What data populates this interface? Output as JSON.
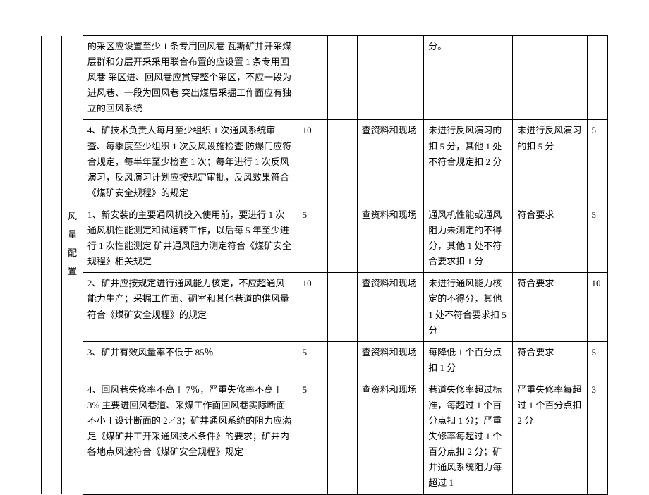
{
  "table": {
    "col2_label": "风量配置",
    "rows": [
      {
        "c": "的采区应设置至少 1 条专用回风巷 瓦斯矿井开采煤层群和分层开采采用联合布置的应设置 1 条专用回风巷 采区进、回风巷应贯穿整个采区，不应一段为进风巷、一段为回风巷 突出煤层采掘工作面应有独立的回风系统",
        "d": "",
        "e": "",
        "f": "",
        "g": "分。",
        "h": "",
        "i": ""
      },
      {
        "c": "4、矿技术负责人每月至少组织 1 次通风系统审查、每季度至少组织 1 次反风设施检查 防爆门应符合规定，每半年至少检查 1 次；每年进行 1 次反风演习，反风演习计划应按规定审批，反风效果符合《煤矿安全规程》的规定",
        "d": "10",
        "e": "",
        "f": "查资料和现场",
        "g": "未进行反风演习的扣 5 分，其他 1 处不符合规定扣 2 分",
        "h": "未进行反风演习的扣 5 分",
        "i": "5"
      },
      {
        "c": "1、新安装的主要通风机投入使用前，要进行 1 次通风机性能测定和试运转工作，以后每 5 年至少进行 1 次性能测定 矿井通风阻力测定符合《煤矿安全规程》相关规定",
        "d": "5",
        "e": "",
        "f": "查资料和现场",
        "g": "通风机性能或通风阻力未测定的不得分，其他 1 处不符合要求扣 1 分",
        "h": "符合要求",
        "i": "5"
      },
      {
        "c": "2、矿井应按规定进行通风能力核定，不应超通风能力生产；采掘工作面、硐室和其他巷道的供风量符合《煤矿安全规程》的规定",
        "d": "10",
        "e": "",
        "f": "查资料和现场",
        "g": "未进行通风能力核定的不得分，其他 1 处不符合要求扣 5 分",
        "h": "符合要求",
        "i": "10"
      },
      {
        "c": "3、矿井有效风量率不低于 85％",
        "d": "5",
        "e": "",
        "f": "查资料和现场",
        "g": "每降低 1 个百分点扣 1 分",
        "h": "符合要求",
        "i": "5"
      },
      {
        "c": "4、回风巷失修率不高于 7％，严重失修率不高于 3% 主要进回风巷道、采煤工作面回风巷实际断面不小于设计断面的 2／3；矿井通风系统的阻力应满足《煤矿井工开采通风技术条件》的要求；矿井内各地点风速符合《煤矿安全规程》规定",
        "d": "5",
        "e": "",
        "f": "查资料和现场",
        "g": "巷道失修率超过标准，每超过 1 个百分点扣 1 分；严重失修率每超过 1 个百分点扣 2 分；矿井通风系统阻力每超过 1",
        "h": "严重失修率每超过 1 个百分点扣 2 分",
        "i": "3"
      }
    ]
  }
}
